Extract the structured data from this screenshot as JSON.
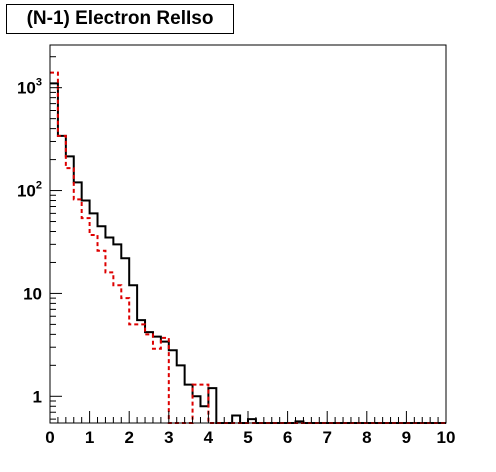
{
  "title": "(N-1) Electron RelIso",
  "chart_data": {
    "type": "line",
    "step": true,
    "title": "(N-1) Electron RelIso",
    "xlabel": "",
    "ylabel": "",
    "xlim": [
      0,
      10
    ],
    "ylim": [
      0.55,
      2600
    ],
    "ylog": true,
    "grid": false,
    "bin_width": 0.2,
    "x_ticks": [
      "0",
      "1",
      "2",
      "3",
      "4",
      "5",
      "6",
      "7",
      "8",
      "9",
      "10"
    ],
    "y_ticks": [
      {
        "value": 1,
        "base": "1",
        "exp": ""
      },
      {
        "value": 10,
        "base": "10",
        "exp": ""
      },
      {
        "value": 100,
        "base": "10",
        "exp": "2"
      },
      {
        "value": 1000,
        "base": "10",
        "exp": "3"
      }
    ],
    "series": [
      {
        "color": "#000000",
        "style": "solid",
        "values": [
          1100,
          340,
          215,
          120,
          80,
          60,
          45,
          35,
          30,
          22,
          12,
          5.5,
          4.2,
          3.8,
          3.4,
          2.8,
          2.0,
          1.3,
          1.0,
          0.8,
          1.2,
          0,
          0,
          0.65,
          0,
          0.6,
          0,
          0,
          0,
          0,
          0,
          0.57,
          0,
          0,
          0,
          0,
          0,
          0,
          0,
          0,
          0,
          0,
          0,
          0,
          0,
          0,
          0,
          0,
          0,
          0
        ]
      },
      {
        "color": "#dd0000",
        "style": "dashed",
        "values": [
          1400,
          340,
          165,
          82,
          54,
          37,
          26,
          16,
          12,
          9,
          5,
          5,
          4,
          2.9,
          3.7,
          0.55,
          0,
          0,
          1.3,
          1.3,
          0,
          0,
          0,
          0,
          0,
          0,
          0,
          0,
          0,
          0,
          0,
          0,
          0,
          0,
          0,
          0,
          0,
          0,
          0,
          0,
          0,
          0,
          0,
          0,
          0,
          0,
          0,
          0,
          0,
          0
        ]
      }
    ]
  }
}
